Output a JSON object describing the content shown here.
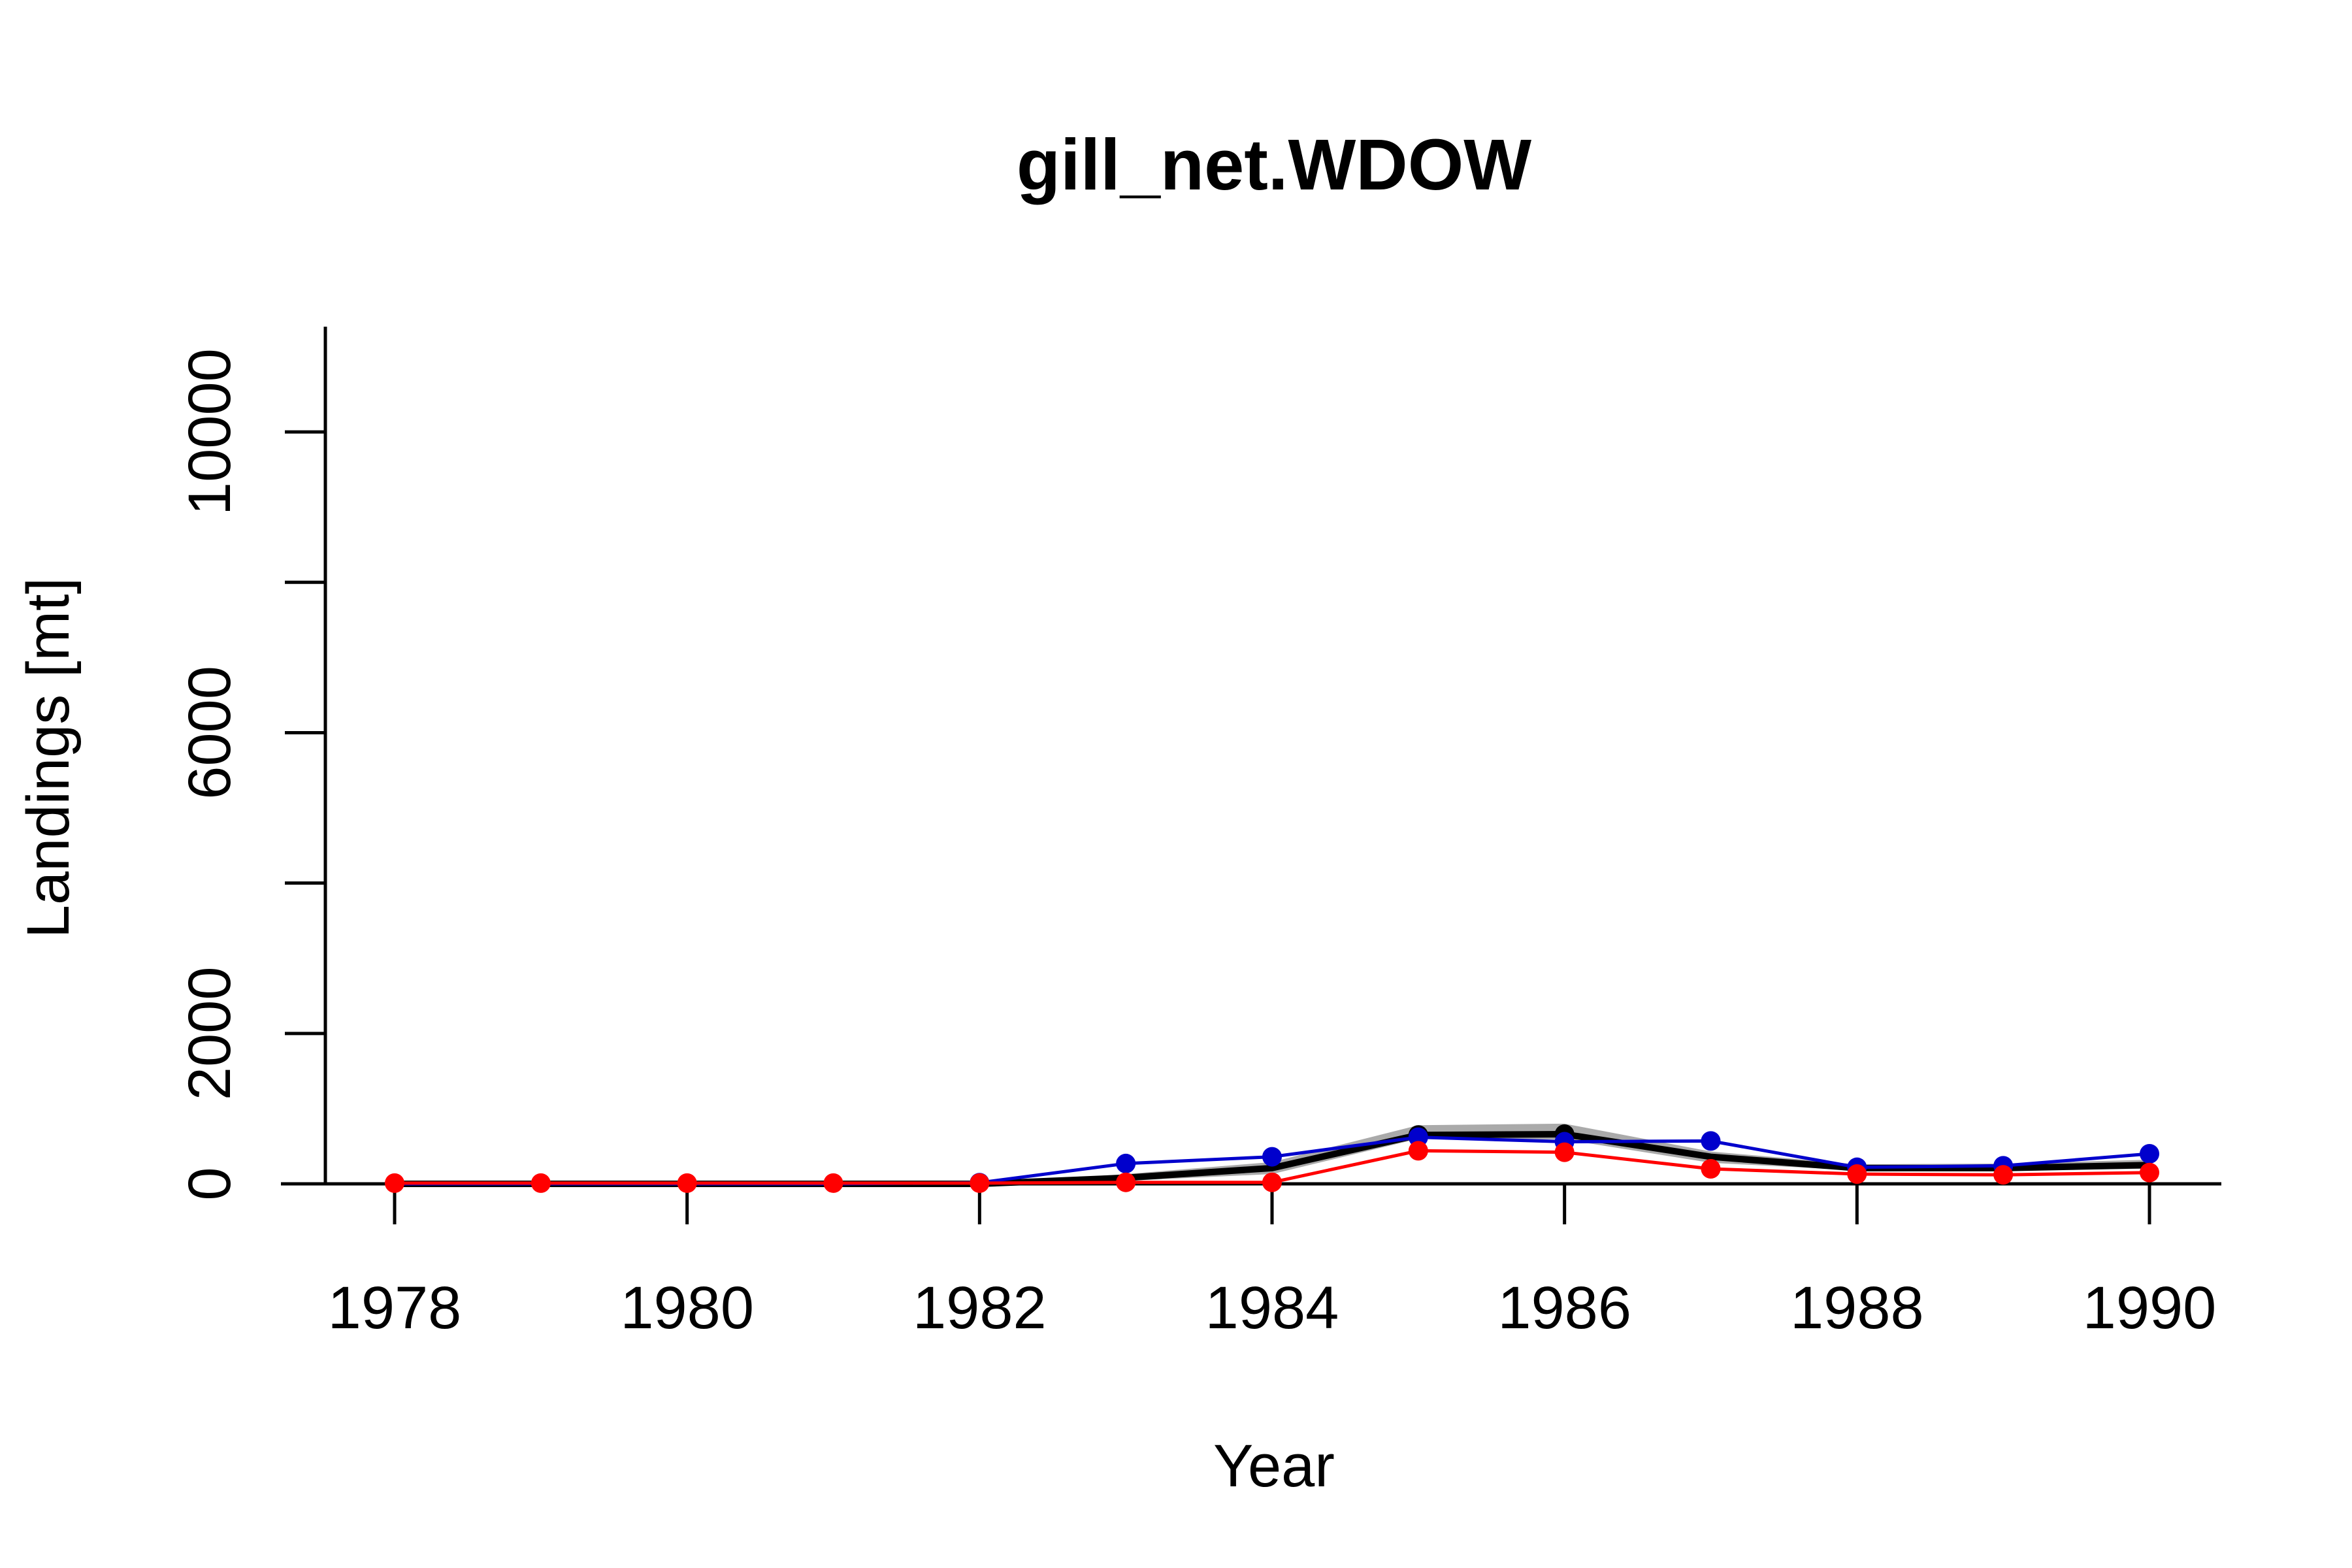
{
  "chart_data": {
    "type": "line",
    "title": "gill_net.WDOW",
    "xlabel": "Year",
    "ylabel": "Landings [mt]",
    "xlim": [
      1977.6,
      1990.4
    ],
    "ylim": [
      0,
      11400
    ],
    "x_ticks": [
      1978,
      1980,
      1982,
      1984,
      1986,
      1988,
      1990
    ],
    "y_ticks": [
      0,
      2000,
      4000,
      6000,
      8000,
      10000
    ],
    "y_tick_labels": [
      "0",
      "2000",
      "",
      "6000",
      "",
      "10000"
    ],
    "x": [
      1978,
      1979,
      1980,
      1981,
      1982,
      1983,
      1984,
      1985,
      1986,
      1987,
      1988,
      1989,
      1990
    ],
    "band": {
      "color": "#aaaaaa",
      "lower": [
        0,
        0,
        0,
        0,
        0,
        40,
        130,
        600,
        590,
        280,
        180,
        180,
        200
      ],
      "upper": [
        0,
        0,
        0,
        0,
        0,
        130,
        290,
        780,
        800,
        430,
        260,
        270,
        320
      ]
    },
    "series": [
      {
        "color": "#000000",
        "values": [
          0,
          0,
          0,
          0,
          0,
          80,
          210,
          650,
          660,
          360,
          210,
          210,
          250
        ],
        "markers": [
          false,
          false,
          false,
          false,
          false,
          false,
          false,
          true,
          true,
          false,
          false,
          false,
          false
        ]
      },
      {
        "color": "#0000cc",
        "values": [
          0,
          0,
          0,
          0,
          15,
          270,
          360,
          620,
          560,
          570,
          220,
          240,
          400
        ],
        "markers": [
          false,
          false,
          false,
          false,
          true,
          true,
          true,
          true,
          true,
          true,
          true,
          true,
          true
        ]
      },
      {
        "color": "#ff0000",
        "values": [
          10,
          10,
          10,
          10,
          10,
          20,
          20,
          440,
          420,
          200,
          130,
          120,
          150
        ],
        "markers": [
          true,
          true,
          true,
          true,
          true,
          true,
          true,
          true,
          true,
          true,
          true,
          true,
          true
        ]
      }
    ]
  }
}
